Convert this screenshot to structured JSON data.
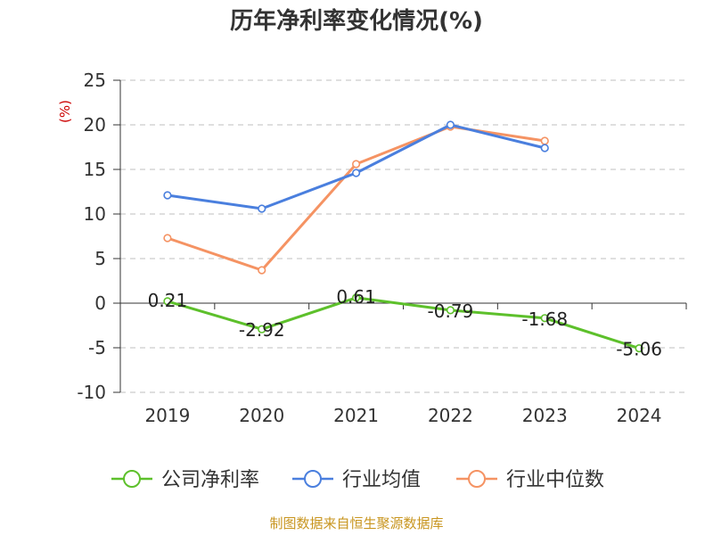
{
  "chart_data": {
    "type": "line",
    "title": "历年净利率变化情况(%)",
    "ylabel": "(%)",
    "xlabel": "",
    "categories": [
      "2019",
      "2020",
      "2021",
      "2022",
      "2023",
      "2024"
    ],
    "ylim": [
      -10,
      25
    ],
    "yticks": [
      25,
      20,
      15,
      10,
      5,
      0,
      -5,
      -10
    ],
    "grid": true,
    "legend_position": "bottom",
    "series": [
      {
        "name": "公司净利率",
        "color": "#5dc02b",
        "values": [
          0.21,
          -2.92,
          0.61,
          -0.79,
          -1.68,
          -5.06
        ],
        "data_labels": [
          "0.21",
          "-2.92",
          "0.61",
          "-0.79",
          "-1.68",
          "-5.06"
        ]
      },
      {
        "name": "行业均值",
        "color": "#4a7fde",
        "values": [
          12.1,
          10.6,
          14.6,
          20.0,
          17.4,
          null
        ]
      },
      {
        "name": "行业中位数",
        "color": "#f59363",
        "values": [
          7.3,
          3.7,
          15.6,
          19.8,
          18.2,
          null
        ]
      }
    ]
  },
  "colors": {
    "unit_label": "#cc0000",
    "source_text": "#c8951f",
    "grid": "#cccccc",
    "axis": "#333333"
  },
  "source": "制图数据来自恒生聚源数据库"
}
